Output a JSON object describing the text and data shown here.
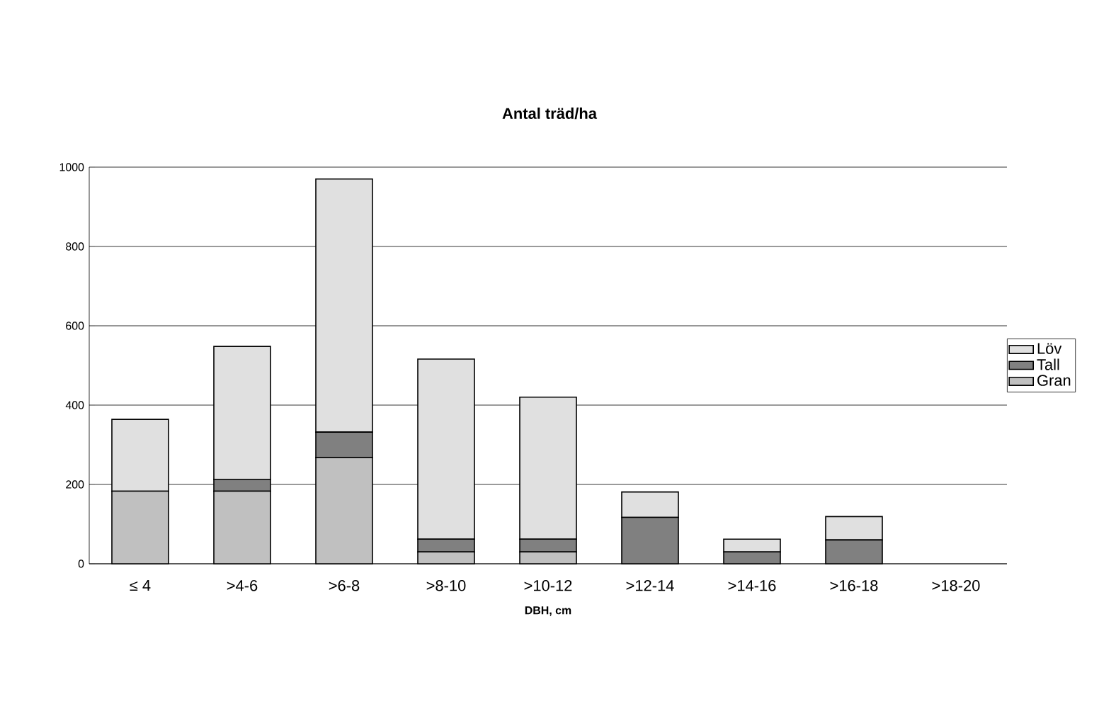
{
  "chart_data": {
    "type": "bar",
    "title": "Antal träd/ha",
    "xlabel": "DBH, cm",
    "stacked": true,
    "categories": [
      "≤ 4",
      ">4-6",
      ">6-8",
      ">8-10",
      ">10-12",
      ">12-14",
      ">14-16",
      ">16-18",
      ">18-20"
    ],
    "series": [
      {
        "name": "Gran",
        "color": "#c0c0c0",
        "values": [
          183,
          183,
          268,
          30,
          30,
          0,
          0,
          0,
          0
        ]
      },
      {
        "name": "Tall",
        "color": "#808080",
        "values": [
          0,
          30,
          64,
          32,
          32,
          117,
          30,
          60,
          0
        ]
      },
      {
        "name": "Löv",
        "color": "#e0e0e0",
        "values": [
          181,
          335,
          638,
          454,
          358,
          64,
          32,
          59,
          0
        ]
      }
    ],
    "ylim": [
      0,
      1000
    ],
    "yticks": [
      0,
      200,
      400,
      600,
      800,
      1000
    ],
    "grid": "y",
    "legend": "right"
  }
}
